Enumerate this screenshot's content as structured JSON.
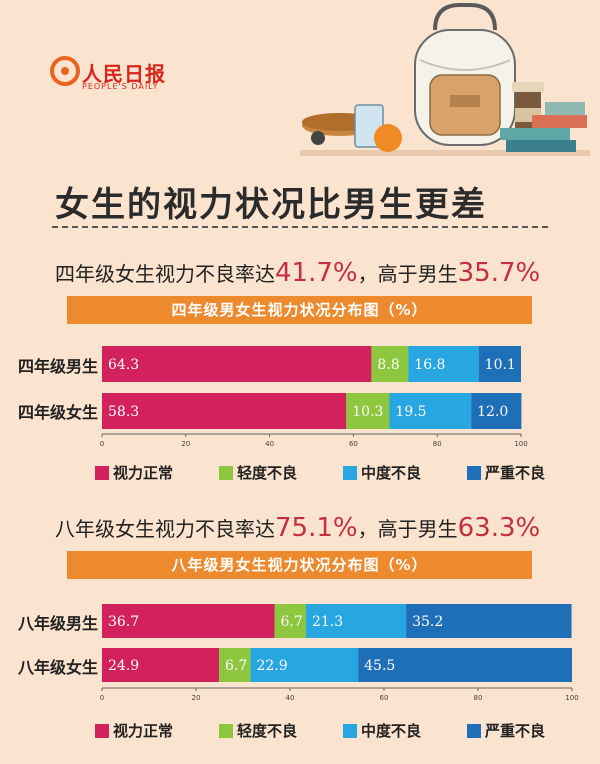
{
  "logo": {
    "cn": "人民日报",
    "en": "PEOPLE'S DAILY"
  },
  "title": "女生的视力状况比男生更差",
  "colors": {
    "normal": "#d3215d",
    "mild": "#8dc63f",
    "moderate": "#27a6e2",
    "severe": "#1e6eb8",
    "banner": "#ee8a2e",
    "highlight": "#c42e40"
  },
  "sections": [
    {
      "headline": {
        "prefix": "四年级女生视力不良率达",
        "girls_rate": "41.7%",
        "middle": "，高于男生",
        "boys_rate": "35.7%"
      },
      "banner": "四年级男女生视力状况分布图（%）"
    },
    {
      "headline": {
        "prefix": "八年级女生视力不良率达",
        "girls_rate": "75.1%",
        "middle": "，高于男生",
        "boys_rate": "63.3%"
      },
      "banner": "八年级男女生视力状况分布图（%）"
    }
  ],
  "chart_data": [
    {
      "type": "bar",
      "orientation": "horizontal",
      "stacked": true,
      "title": "四年级男女生视力状况分布图（%）",
      "categories": [
        "四年级男生",
        "四年级女生"
      ],
      "series": [
        {
          "name": "视力正常",
          "values": [
            64.3,
            58.3
          ],
          "labels": [
            "64.3",
            "58.3"
          ]
        },
        {
          "name": "轻度不良",
          "values": [
            8.8,
            10.3
          ],
          "labels": [
            "8.8",
            "10.3"
          ]
        },
        {
          "name": "中度不良",
          "values": [
            16.8,
            19.5
          ],
          "labels": [
            "16.8",
            "19.5"
          ]
        },
        {
          "name": "严重不良",
          "values": [
            10.1,
            12.0
          ],
          "labels": [
            "10.1",
            "12.0"
          ]
        }
      ],
      "xlim": [
        0,
        100
      ],
      "xticks": [
        "0",
        "20",
        "40",
        "60",
        "80",
        "100"
      ],
      "legend": "bottom",
      "grid": false
    },
    {
      "type": "bar",
      "orientation": "horizontal",
      "stacked": true,
      "title": "八年级男女生视力状况分布图（%）",
      "categories": [
        "八年级男生",
        "八年级女生"
      ],
      "series": [
        {
          "name": "视力正常",
          "values": [
            36.7,
            24.9
          ],
          "labels": [
            "36.7",
            "24.9"
          ]
        },
        {
          "name": "轻度不良",
          "values": [
            6.7,
            6.7
          ],
          "labels": [
            "6.7",
            "6.7"
          ]
        },
        {
          "name": "中度不良",
          "values": [
            21.3,
            22.9
          ],
          "labels": [
            "21.3",
            "22.9"
          ]
        },
        {
          "name": "严重不良",
          "values": [
            35.2,
            45.5
          ],
          "labels": [
            "35.2",
            "45.5"
          ]
        }
      ],
      "xlim": [
        0,
        100
      ],
      "xticks": [
        "0",
        "20",
        "40",
        "60",
        "80",
        "100"
      ],
      "legend": "bottom",
      "grid": false
    }
  ]
}
